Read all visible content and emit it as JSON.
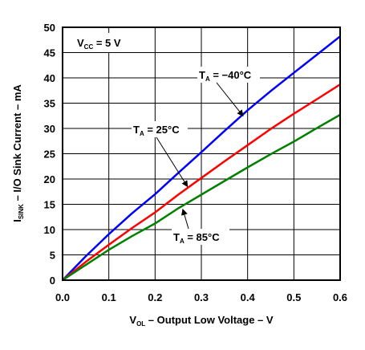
{
  "chart_data": {
    "type": "line",
    "xlabel": {
      "main": "V",
      "sub": "OL",
      "rest": " – Output Low Voltage – V"
    },
    "ylabel": {
      "main": "I",
      "sub": "SINK",
      "rest": " – I/O Sink Current – mA"
    },
    "xlim": [
      0,
      0.6
    ],
    "ylim": [
      0,
      50
    ],
    "xticks": [
      "0.0",
      "0.1",
      "0.2",
      "0.3",
      "0.4",
      "0.5",
      "0.6"
    ],
    "yticks": [
      "0",
      "5",
      "10",
      "15",
      "20",
      "25",
      "30",
      "35",
      "40",
      "45",
      "50"
    ],
    "grid": true,
    "series": [
      {
        "name": "−40°C",
        "color": "#0000ff",
        "x": [
          0,
          0.05,
          0.1,
          0.15,
          0.2,
          0.25,
          0.3,
          0.35,
          0.4,
          0.45,
          0.5,
          0.55,
          0.6
        ],
        "y": [
          0,
          4.7,
          9.1,
          13.2,
          17.0,
          21.2,
          25.3,
          29.5,
          33.6,
          37.4,
          41.0,
          44.6,
          48.2
        ]
      },
      {
        "name": "25°C",
        "color": "#ff0000",
        "x": [
          0,
          0.05,
          0.1,
          0.15,
          0.2,
          0.25,
          0.3,
          0.35,
          0.4,
          0.45,
          0.5,
          0.55,
          0.6
        ],
        "y": [
          0,
          3.6,
          7.0,
          10.3,
          13.4,
          16.9,
          20.2,
          23.5,
          26.7,
          29.9,
          32.9,
          35.8,
          38.7
        ]
      },
      {
        "name": "85°C",
        "color": "#008000",
        "x": [
          0,
          0.05,
          0.1,
          0.15,
          0.2,
          0.25,
          0.3,
          0.35,
          0.4,
          0.45,
          0.5,
          0.55,
          0.6
        ],
        "y": [
          0,
          3.0,
          6.0,
          8.7,
          11.2,
          14.2,
          16.9,
          19.6,
          22.3,
          24.9,
          27.4,
          30.1,
          32.7
        ]
      }
    ],
    "annotations": [
      {
        "main": "V",
        "sub": "CC",
        "rest": " = 5 V"
      },
      {
        "main": "T",
        "sub": "A",
        "rest": " = −40°C",
        "target": [
          0.39,
          32.5
        ]
      },
      {
        "main": "T",
        "sub": "A",
        "rest": " = 25°C",
        "target": [
          0.27,
          18.5
        ]
      },
      {
        "main": "T",
        "sub": "A",
        "rest": " = 85°C",
        "target": [
          0.26,
          14.0
        ]
      }
    ]
  }
}
